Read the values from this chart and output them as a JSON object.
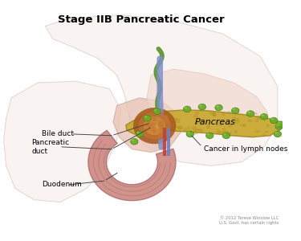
{
  "title": "Stage IIB Pancreatic Cancer",
  "title_fontsize": 9.5,
  "title_fontweight": "bold",
  "background_color": "#ffffff",
  "copyright_text": "© 2012 Terese Winslow LLC\nU.S. Govt. has certain rights",
  "labels": {
    "bile_duct": "Bile duct",
    "pancreatic_duct": "Pancreatic\nduct",
    "duodenum": "Duodenum",
    "pancreas": "Pancreas",
    "cancer_lymph": "Cancer in lymph nodes"
  },
  "colors": {
    "background": "#ffffff",
    "body_bg": "#f5eeeb",
    "liver_bg": "#f0e6e0",
    "stomach_pink": "#e8c0b0",
    "duodenum_main": "#cc8888",
    "duodenum_inner": "#d49898",
    "duodenum_fold": "#bb7070",
    "pancreas_fill": "#c8a835",
    "pancreas_edge": "#a88825",
    "tumor_dark": "#b06020",
    "tumor_mid": "#c87828",
    "tumor_light": "#d89040",
    "lymph_fill": "#6aaa28",
    "lymph_edge": "#4a8a18",
    "bile_green": "#4a8820",
    "bile_green_light": "#6aaa40",
    "bile_blue": "#8090c8",
    "vessel_red": "#c04040",
    "vessel_blue": "#7080b8",
    "label_text": "#000000",
    "line_color": "#404040",
    "copyright_color": "#888888"
  }
}
